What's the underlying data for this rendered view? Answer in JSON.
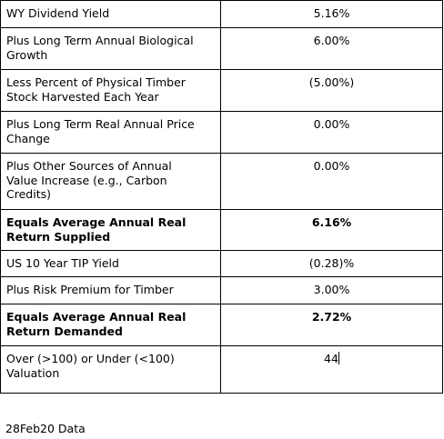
{
  "table": {
    "rows": [
      [
        "WY Dividend Yield",
        "5.16%"
      ],
      [
        "Plus Long Term Annual Biological Growth",
        "6.00%"
      ],
      [
        "Less Percent of Physical Timber Stock Harvested Each Year",
        "(5.00%)"
      ],
      [
        "Plus Long Term Real Annual Price Change",
        "0.00%"
      ],
      [
        "Plus Other Sources of Annual Value Increase (e.g., Carbon Credits)",
        "0.00%"
      ],
      [
        "Equals Average Annual Real Return Supplied",
        "6.16%"
      ],
      [
        "US 10 Year TIP Yield",
        "(0.28)%"
      ],
      [
        "Plus Risk Premium for Timber",
        "3.00%"
      ],
      [
        "Equals Average Annual Real Return Demanded",
        "2.72%"
      ],
      [
        "Over (>100) or Under (<100) Valuation",
        "44"
      ]
    ]
  },
  "footer": {
    "note": "28Feb20 Data"
  }
}
